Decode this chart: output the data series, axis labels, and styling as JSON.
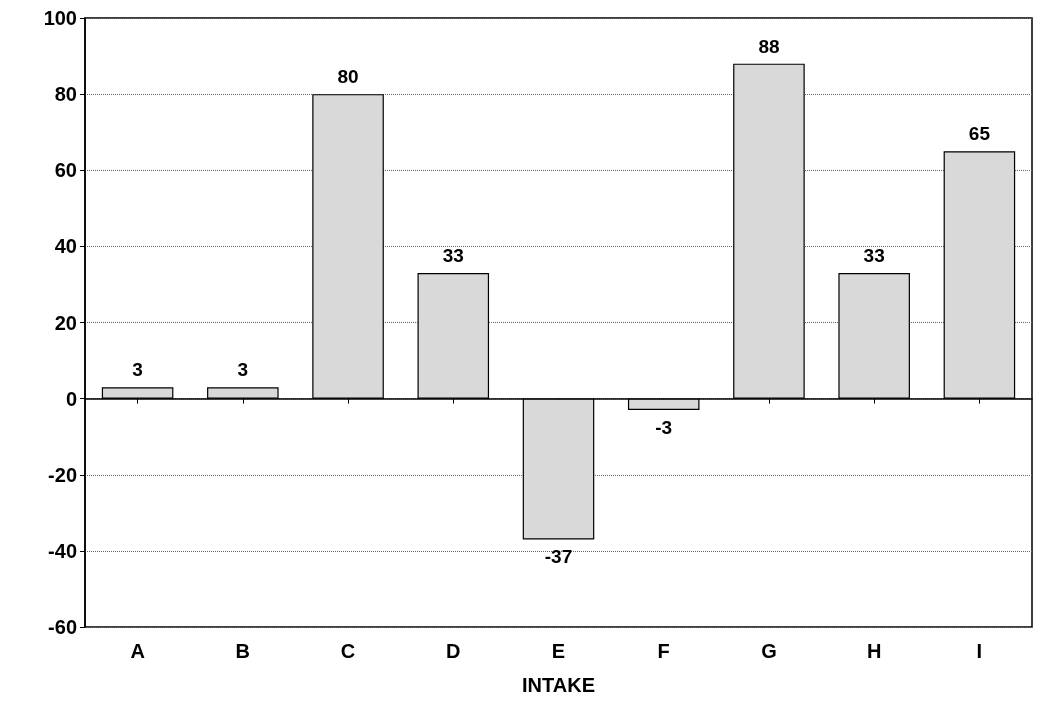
{
  "chart_data": {
    "type": "bar",
    "xlabel": "INTAKE",
    "categories": [
      "A",
      "B",
      "C",
      "D",
      "E",
      "F",
      "G",
      "H",
      "I"
    ],
    "values": [
      3,
      3,
      80,
      33,
      -37,
      -3,
      88,
      33,
      65
    ],
    "color": "#d9d9d9",
    "ylim": [
      -60,
      100
    ],
    "yticks": [
      -60,
      -40,
      -20,
      0,
      20,
      40,
      60,
      80,
      100
    ],
    "grid": "y",
    "data_labels": true
  }
}
